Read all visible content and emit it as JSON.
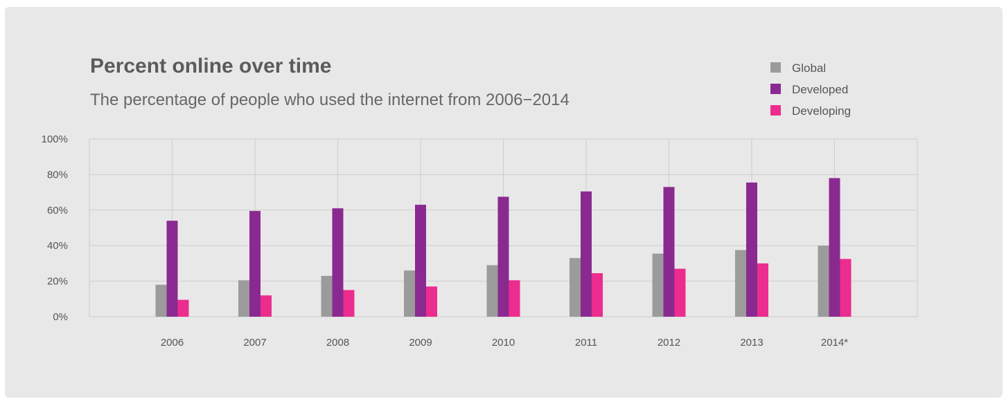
{
  "colors": {
    "card_background": "#e8e8e8",
    "grid": "#cdcdcd",
    "global": "#9b9b9b",
    "developed": "#8a2a90",
    "developing": "#ec2c8e"
  },
  "chart_data": {
    "type": "bar",
    "title": "Percent online over time",
    "subtitle": "The percentage of people who used the internet from 2006−2014",
    "xlabel": "",
    "ylabel": "",
    "categories": [
      "2006",
      "2007",
      "2008",
      "2009",
      "2010",
      "2011",
      "2012",
      "2013",
      "2014*"
    ],
    "y_ticks": [
      "0%",
      "20%",
      "40%",
      "60%",
      "80%",
      "100%"
    ],
    "ylim": [
      0,
      100
    ],
    "grid": true,
    "legend_position": "top-right",
    "series": [
      {
        "name": "Global",
        "color": "#9b9b9b",
        "values": [
          18,
          20.5,
          23,
          26,
          29,
          33,
          35.5,
          37.5,
          40
        ]
      },
      {
        "name": "Developed",
        "color": "#8a2a90",
        "values": [
          54,
          59.5,
          61,
          63,
          67.5,
          70.5,
          73,
          75.5,
          78
        ]
      },
      {
        "name": "Developing",
        "color": "#ec2c8e",
        "values": [
          9.5,
          12,
          15,
          17,
          20.5,
          24.5,
          27,
          30,
          32.5
        ]
      }
    ]
  }
}
